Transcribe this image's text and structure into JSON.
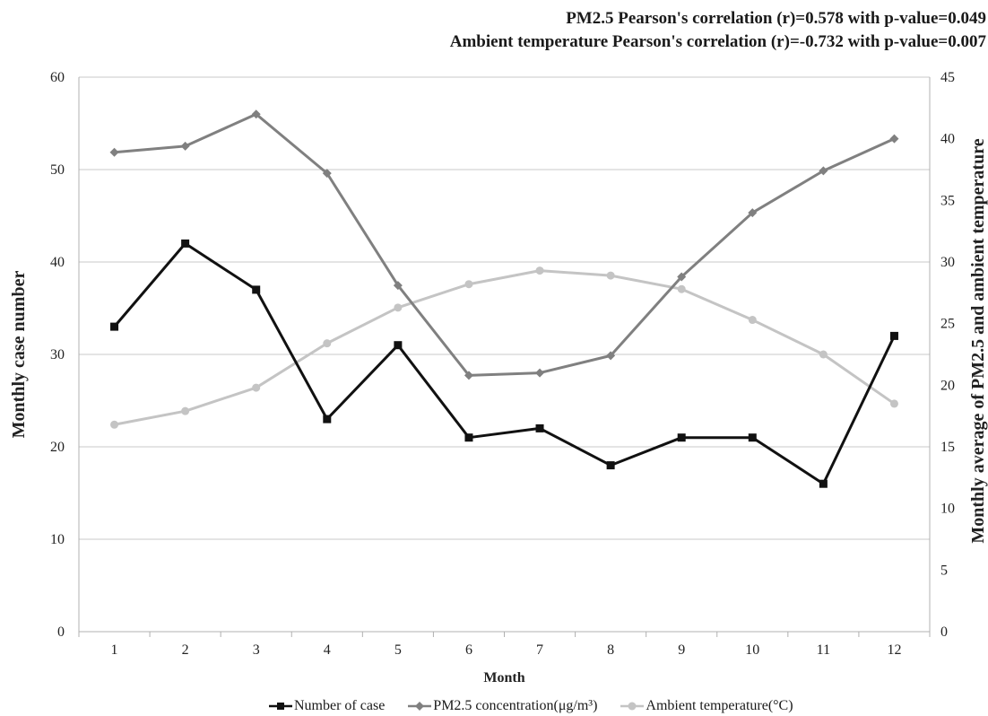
{
  "chart_data": {
    "type": "line",
    "title_lines": [
      "PM2.5 Pearson's correlation (r)=0.578 with p-value=0.049",
      "Ambient temperature Pearson's correlation (r)=-0.732 with p-value=0.007"
    ],
    "xlabel": "Month",
    "ylabel_left": "Monthly case number",
    "ylabel_right": "Monthly average of PM2.5 and ambient temperature",
    "categories": [
      "1",
      "2",
      "3",
      "4",
      "5",
      "6",
      "7",
      "8",
      "9",
      "10",
      "11",
      "12"
    ],
    "y_left": {
      "min": 0,
      "max": 60,
      "ticks": [
        "0",
        "10",
        "20",
        "30",
        "40",
        "50",
        "60"
      ]
    },
    "y_right": {
      "min": 0,
      "max": 45,
      "ticks": [
        "0",
        "5",
        "10",
        "15",
        "20",
        "25",
        "30",
        "35",
        "40",
        "45"
      ]
    },
    "grid": true,
    "legend_position": "bottom",
    "series": [
      {
        "name": "Number of case",
        "axis": "left",
        "marker": "square",
        "color": "#111111",
        "values": [
          33,
          42,
          37,
          23,
          31,
          21,
          22,
          18,
          21,
          21,
          16,
          32
        ]
      },
      {
        "name": "PM2.5 concentration(μg/m³)",
        "axis": "right",
        "marker": "diamond",
        "color": "#808080",
        "values": [
          38.9,
          39.4,
          42.0,
          37.2,
          28.1,
          20.8,
          21.0,
          22.4,
          28.8,
          34.0,
          37.4,
          40.0
        ]
      },
      {
        "name": "Ambient temperature(°C)",
        "axis": "right",
        "marker": "circle",
        "color": "#c4c4c4",
        "values": [
          16.8,
          17.9,
          19.8,
          23.4,
          26.3,
          28.2,
          29.3,
          28.9,
          27.8,
          25.3,
          22.5,
          18.5
        ]
      }
    ]
  }
}
